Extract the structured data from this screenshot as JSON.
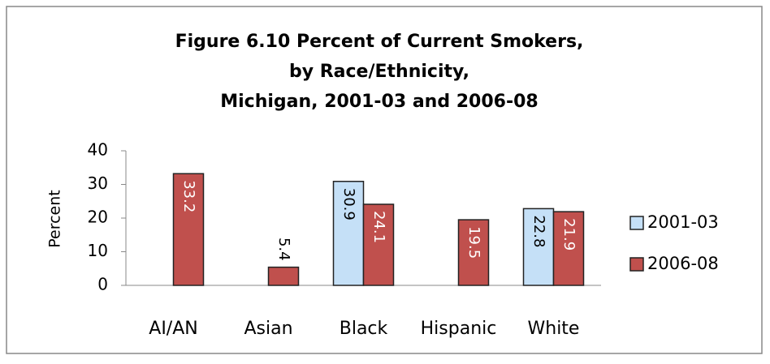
{
  "chart_data": {
    "type": "bar",
    "title": [
      "Figure 6.10  Percent of Current Smokers,",
      "by Race/Ethnicity,",
      "Michigan, 2001-03 and 2006-08"
    ],
    "y_label": "Percent",
    "categories": [
      "AI/AN",
      "Asian",
      "Black",
      "Hispanic",
      "White"
    ],
    "series": [
      {
        "name": "2001-03",
        "color": "#c5e0f7",
        "values": [
          null,
          null,
          30.9,
          null,
          22.8
        ]
      },
      {
        "name": "2006-08",
        "color": "#c0504d",
        "values": [
          33.2,
          5.4,
          24.1,
          19.5,
          21.9
        ]
      }
    ],
    "ylim": [
      0,
      40
    ],
    "yticks": [
      0,
      10,
      20,
      30,
      40
    ],
    "legend": "right"
  }
}
